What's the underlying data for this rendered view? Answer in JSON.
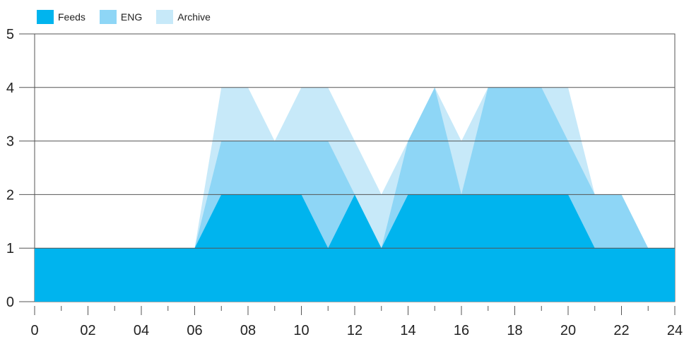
{
  "chart_data": {
    "type": "area",
    "stacked": false,
    "x": [
      0,
      1,
      2,
      3,
      4,
      5,
      6,
      7,
      8,
      9,
      10,
      11,
      12,
      13,
      14,
      15,
      16,
      17,
      18,
      19,
      20,
      21,
      22,
      23,
      24
    ],
    "series": [
      {
        "name": "Feeds",
        "color": "#00b4ee",
        "values": [
          1,
          1,
          1,
          1,
          1,
          1,
          1,
          2,
          2,
          2,
          2,
          1,
          2,
          1,
          2,
          2,
          2,
          2,
          2,
          2,
          2,
          1,
          1,
          1,
          1
        ]
      },
      {
        "name": "ENG",
        "color": "#8ed6f6",
        "values": [
          1,
          1,
          1,
          1,
          1,
          1,
          1,
          3,
          3,
          3,
          3,
          3,
          2,
          1,
          3,
          4,
          2,
          4,
          4,
          4,
          3,
          2,
          2,
          1,
          1
        ]
      },
      {
        "name": "Archive",
        "color": "#c7e9f9",
        "values": [
          1,
          1,
          1,
          1,
          1,
          1,
          1,
          4,
          4,
          3,
          4,
          4,
          3,
          2,
          3,
          4,
          3,
          4,
          4,
          4,
          4,
          2,
          2,
          1,
          1
        ]
      }
    ],
    "xticks": [
      0,
      2,
      4,
      6,
      8,
      10,
      12,
      14,
      16,
      18,
      20,
      22,
      24
    ],
    "xtick_labels": [
      "0",
      "02",
      "04",
      "06",
      "08",
      "10",
      "12",
      "14",
      "16",
      "18",
      "20",
      "22",
      "24"
    ],
    "yticks": [
      0,
      1,
      2,
      3,
      4,
      5
    ],
    "xlim": [
      0,
      24
    ],
    "ylim": [
      0,
      5
    ],
    "grid": "horizontal",
    "legend": "top-left",
    "title": "",
    "xlabel": "",
    "ylabel": ""
  }
}
